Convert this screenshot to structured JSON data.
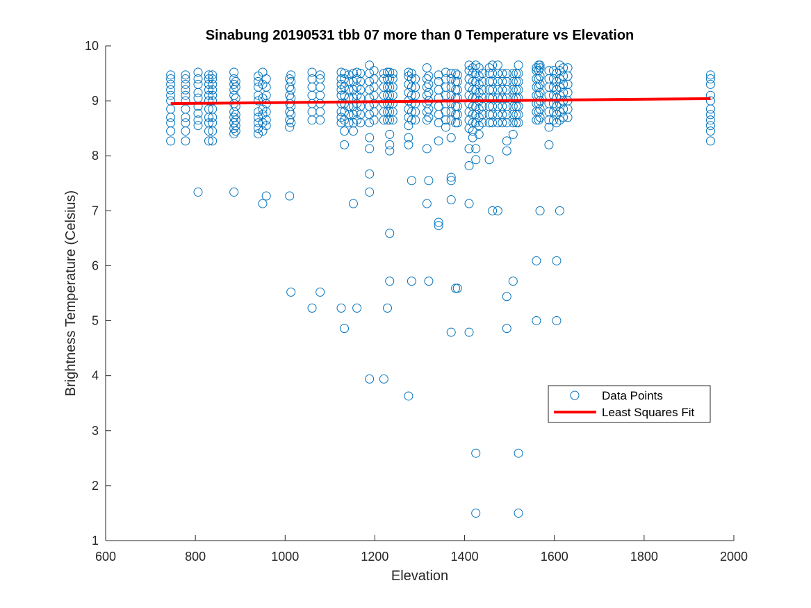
{
  "chart_data": {
    "type": "scatter",
    "title": "Sinabung 20190531 tbb 07 more than 0 Temperature vs Elevation",
    "xlabel": "Elevation",
    "ylabel": "Brightness Temperature (Celsius)",
    "xlim": [
      600,
      2000
    ],
    "ylim": [
      1,
      10
    ],
    "xticks": [
      600,
      800,
      1000,
      1200,
      1400,
      1600,
      1800,
      2000
    ],
    "yticks": [
      1,
      2,
      3,
      4,
      5,
      6,
      7,
      8,
      9,
      10
    ],
    "grid": false,
    "legend_position": "lower-right",
    "colors": {
      "points": "#0072BD",
      "fit": "#FF0000"
    },
    "series": [
      {
        "name": "Data Points",
        "marker": "circle-open",
        "columns": [
          {
            "x": 745,
            "y": [
              8.27,
              8.45,
              8.6,
              8.7,
              8.85,
              9.0,
              9.1,
              9.2,
              9.3,
              9.4,
              9.47
            ]
          },
          {
            "x": 778,
            "y": [
              8.27,
              8.45,
              8.6,
              8.7,
              8.85,
              9.0,
              9.1,
              9.2,
              9.3,
              9.4,
              9.47
            ]
          },
          {
            "x": 806,
            "y": [
              7.34,
              8.55,
              8.65,
              8.77,
              8.9,
              9.05,
              9.15,
              9.3,
              9.4,
              9.52
            ]
          },
          {
            "x": 830,
            "y": [
              8.27,
              8.45,
              8.6,
              8.7,
              8.85,
              9.0,
              9.1,
              9.2,
              9.3,
              9.4,
              9.47
            ]
          },
          {
            "x": 838,
            "y": [
              8.27,
              8.45,
              8.6,
              8.7,
              8.85,
              9.0,
              9.1,
              9.2,
              9.3,
              9.4,
              9.47
            ]
          },
          {
            "x": 886,
            "y": [
              7.34,
              8.4,
              8.5,
              8.6,
              8.7,
              8.8,
              8.95,
              9.1,
              9.2,
              9.3,
              9.4,
              9.52
            ]
          },
          {
            "x": 890,
            "y": [
              8.45,
              8.55,
              8.65,
              8.75,
              8.9,
              9.05,
              9.25,
              9.35
            ]
          },
          {
            "x": 940,
            "y": [
              8.4,
              8.5,
              8.6,
              8.7,
              8.8,
              9.0,
              9.1,
              9.25,
              9.35,
              9.45
            ]
          },
          {
            "x": 950,
            "y": [
              7.13,
              8.45,
              8.6,
              8.75,
              8.85,
              9.05,
              9.3,
              9.52
            ]
          },
          {
            "x": 958,
            "y": [
              7.27,
              8.55,
              8.65,
              8.8,
              8.95,
              9.1,
              9.25,
              9.4
            ]
          },
          {
            "x": 1010,
            "y": [
              7.27,
              8.52,
              8.65,
              8.8,
              8.95,
              9.1,
              9.25,
              9.4
            ]
          },
          {
            "x": 1013,
            "y": [
              5.52,
              8.6,
              8.75,
              8.9,
              9.05,
              9.2,
              9.35,
              9.47
            ]
          },
          {
            "x": 1060,
            "y": [
              5.23,
              8.65,
              8.8,
              8.95,
              9.1,
              9.25,
              9.4,
              9.52
            ]
          },
          {
            "x": 1078,
            "y": [
              5.52,
              8.65,
              8.8,
              8.95,
              9.1,
              9.25,
              9.4,
              9.47
            ]
          },
          {
            "x": 1125,
            "y": [
              5.23,
              8.6,
              8.7,
              8.8,
              8.95,
              9.1,
              9.2,
              9.3,
              9.4,
              9.52
            ]
          },
          {
            "x": 1132,
            "y": [
              4.86,
              8.2,
              8.45,
              8.65,
              8.8,
              8.95,
              9.1,
              9.25,
              9.4,
              9.5
            ]
          },
          {
            "x": 1142,
            "y": [
              8.6,
              8.75,
              8.9,
              9.05,
              9.2,
              9.35,
              9.47
            ]
          },
          {
            "x": 1152,
            "y": [
              7.13,
              8.45,
              8.6,
              8.75,
              8.9,
              9.05,
              9.2,
              9.35,
              9.5
            ]
          },
          {
            "x": 1160,
            "y": [
              5.23,
              8.65,
              8.8,
              8.95,
              9.1,
              9.25,
              9.4,
              9.52
            ]
          },
          {
            "x": 1168,
            "y": [
              8.6,
              8.75,
              8.9,
              9.05,
              9.2,
              9.35,
              9.5
            ]
          },
          {
            "x": 1188,
            "y": [
              3.94,
              7.34,
              7.67,
              8.13,
              8.33,
              8.6,
              8.75,
              8.9,
              9.05,
              9.2,
              9.35,
              9.5,
              9.65
            ]
          },
          {
            "x": 1198,
            "y": [
              8.65,
              8.8,
              8.95,
              9.1,
              9.25,
              9.4,
              9.55
            ]
          },
          {
            "x": 1220,
            "y": [
              3.94,
              8.65,
              8.8,
              8.95,
              9.1,
              9.25,
              9.4,
              9.5
            ]
          },
          {
            "x": 1228,
            "y": [
              5.23,
              8.65,
              8.8,
              8.95,
              9.1,
              9.25,
              9.4,
              9.52
            ]
          },
          {
            "x": 1233,
            "y": [
              5.72,
              6.59,
              8.09,
              8.2,
              8.39,
              8.65,
              8.8,
              8.95,
              9.1,
              9.25,
              9.4,
              9.52
            ]
          },
          {
            "x": 1240,
            "y": [
              8.65,
              8.8,
              8.95,
              9.1,
              9.25,
              9.4,
              9.5
            ]
          },
          {
            "x": 1275,
            "y": [
              3.63,
              8.2,
              8.33,
              8.55,
              8.7,
              8.85,
              9.0,
              9.15,
              9.3,
              9.45,
              9.52
            ]
          },
          {
            "x": 1282,
            "y": [
              5.72,
              7.55,
              8.65,
              8.8,
              8.95,
              9.1,
              9.25,
              9.4,
              9.5
            ]
          },
          {
            "x": 1290,
            "y": [
              8.65,
              8.8,
              8.95,
              9.1,
              9.25,
              9.4
            ]
          },
          {
            "x": 1316,
            "y": [
              7.13,
              8.13,
              8.65,
              8.8,
              8.95,
              9.1,
              9.25,
              9.4,
              9.6
            ]
          },
          {
            "x": 1320,
            "y": [
              5.72,
              7.55,
              8.7,
              8.85,
              9.0,
              9.15,
              9.3,
              9.45
            ]
          },
          {
            "x": 1342,
            "y": [
              6.73,
              6.79,
              8.27,
              8.6,
              8.75,
              8.9,
              9.05,
              9.2,
              9.35,
              9.47
            ]
          },
          {
            "x": 1358,
            "y": [
              8.52,
              8.65,
              8.8,
              8.95,
              9.1,
              9.25,
              9.4,
              9.52
            ]
          },
          {
            "x": 1370,
            "y": [
              4.79,
              7.2,
              7.55,
              7.61,
              8.33,
              8.65,
              8.8,
              8.95,
              9.1,
              9.25,
              9.4,
              9.5
            ]
          },
          {
            "x": 1380,
            "y": [
              5.59,
              8.6,
              8.75,
              8.9,
              9.05,
              9.2,
              9.35,
              9.5
            ]
          },
          {
            "x": 1384,
            "y": [
              5.59,
              8.6,
              8.75,
              8.9,
              9.05,
              9.2,
              9.35,
              9.47
            ]
          },
          {
            "x": 1410,
            "y": [
              4.79,
              7.13,
              7.82,
              8.13,
              8.5,
              8.65,
              8.8,
              8.95,
              9.1,
              9.25,
              9.4,
              9.55,
              9.65
            ]
          },
          {
            "x": 1418,
            "y": [
              8.33,
              8.45,
              8.6,
              8.75,
              8.9,
              9.05,
              9.2,
              9.35,
              9.5,
              9.6
            ]
          },
          {
            "x": 1425,
            "y": [
              1.5,
              2.59,
              7.93,
              8.13,
              8.6,
              8.75,
              8.9,
              9.05,
              9.2,
              9.35,
              9.5,
              9.65
            ]
          },
          {
            "x": 1432,
            "y": [
              8.39,
              8.55,
              8.7,
              8.85,
              9.0,
              9.15,
              9.3,
              9.45,
              9.6
            ]
          },
          {
            "x": 1440,
            "y": [
              8.6,
              8.75,
              8.9,
              9.05,
              9.2,
              9.35,
              9.5
            ]
          },
          {
            "x": 1455,
            "y": [
              7.93,
              8.6,
              8.75,
              8.9,
              9.05,
              9.2,
              9.35,
              9.5,
              9.6
            ]
          },
          {
            "x": 1462,
            "y": [
              7.0,
              8.6,
              8.75,
              8.9,
              9.05,
              9.2,
              9.35,
              9.5,
              9.65
            ]
          },
          {
            "x": 1474,
            "y": [
              7.0,
              8.6,
              8.75,
              8.9,
              9.05,
              9.2,
              9.35,
              9.5,
              9.65
            ]
          },
          {
            "x": 1484,
            "y": [
              8.6,
              8.75,
              8.9,
              9.05,
              9.2,
              9.35,
              9.5
            ]
          },
          {
            "x": 1494,
            "y": [
              4.86,
              5.44,
              8.09,
              8.27,
              8.6,
              8.75,
              8.9,
              9.05,
              9.2,
              9.35,
              9.5
            ]
          },
          {
            "x": 1508,
            "y": [
              5.72,
              8.39,
              8.6,
              8.75,
              8.9,
              9.05,
              9.2,
              9.35,
              9.5
            ]
          },
          {
            "x": 1515,
            "y": [
              8.6,
              8.75,
              8.9,
              9.05,
              9.2,
              9.35,
              9.5
            ]
          },
          {
            "x": 1520,
            "y": [
              1.5,
              2.59,
              8.6,
              8.75,
              8.9,
              9.05,
              9.2,
              9.35,
              9.5,
              9.65
            ]
          },
          {
            "x": 1560,
            "y": [
              5.0,
              6.09,
              8.65,
              8.8,
              8.95,
              9.1,
              9.25,
              9.4,
              9.55,
              9.6
            ]
          },
          {
            "x": 1565,
            "y": [
              8.65,
              8.8,
              8.95,
              9.1,
              9.25,
              9.4,
              9.55,
              9.65
            ]
          },
          {
            "x": 1568,
            "y": [
              7.0,
              8.7,
              8.85,
              9.0,
              9.15,
              9.3,
              9.45,
              9.6,
              9.65
            ]
          },
          {
            "x": 1588,
            "y": [
              8.2,
              8.52,
              8.65,
              8.8,
              8.95,
              9.1,
              9.25,
              9.4,
              9.55
            ]
          },
          {
            "x": 1598,
            "y": [
              8.65,
              8.8,
              8.95,
              9.1,
              9.25,
              9.4,
              9.55
            ]
          },
          {
            "x": 1605,
            "y": [
              5.0,
              6.09,
              8.6,
              8.75,
              8.9,
              9.05,
              9.2,
              9.35,
              9.5
            ]
          },
          {
            "x": 1612,
            "y": [
              7.0,
              8.65,
              8.8,
              8.95,
              9.1,
              9.25,
              9.4,
              9.55,
              9.65
            ]
          },
          {
            "x": 1620,
            "y": [
              8.7,
              8.85,
              9.0,
              9.15,
              9.3,
              9.45,
              9.6
            ]
          },
          {
            "x": 1630,
            "y": [
              8.7,
              8.85,
              9.0,
              9.15,
              9.3,
              9.45,
              9.6
            ]
          },
          {
            "x": 1948,
            "y": [
              8.27,
              8.45,
              8.55,
              8.65,
              8.75,
              8.85,
              9.0,
              9.1,
              9.3,
              9.4,
              9.47
            ]
          }
        ]
      },
      {
        "name": "Least Squares Fit",
        "type": "line",
        "x": [
          745,
          1948
        ],
        "y": [
          8.95,
          9.04
        ]
      }
    ]
  }
}
